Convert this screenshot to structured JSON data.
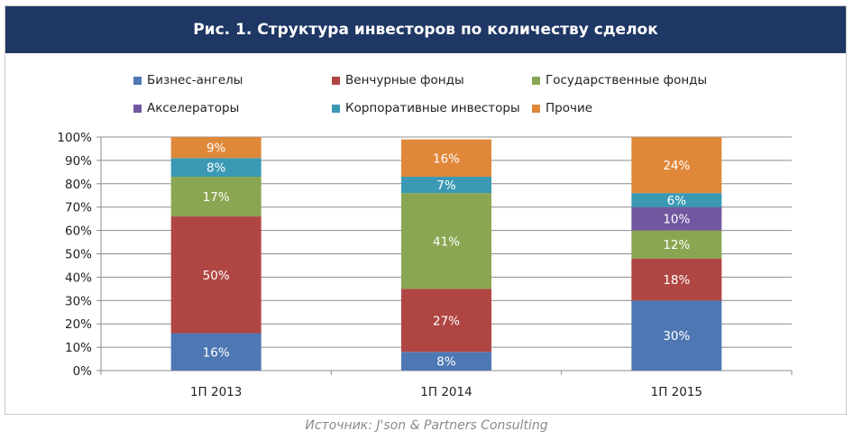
{
  "figure": {
    "title": "Рис. 1. Структура инвесторов по количеству сделок",
    "source": "Источник: J'son & Partners Consulting"
  },
  "legend": [
    {
      "name": "Бизнес-ангелы",
      "color": "#4e78b3"
    },
    {
      "name": "Венчурные фонды",
      "color": "#b04643"
    },
    {
      "name": "Государственные фонды",
      "color": "#8aa652"
    },
    {
      "name": "Акселераторы",
      "color": "#7257a0"
    },
    {
      "name": "Корпоративные инвесторы",
      "color": "#3b99b4"
    },
    {
      "name": "Прочие",
      "color": "#e0883a"
    }
  ],
  "chart_data": {
    "type": "bar",
    "stacked": true,
    "title": "Рис. 1. Структура инвесторов по количеству сделок",
    "categories": [
      "1П 2013",
      "1П 2014",
      "1П 2015"
    ],
    "series": [
      {
        "name": "Бизнес-ангелы",
        "color": "#4e78b3",
        "values": [
          16,
          8,
          30
        ]
      },
      {
        "name": "Венчурные фонды",
        "color": "#b04643",
        "values": [
          50,
          27,
          18
        ]
      },
      {
        "name": "Государственные фонды",
        "color": "#8aa652",
        "values": [
          17,
          41,
          12
        ]
      },
      {
        "name": "Акселераторы",
        "color": "#7257a0",
        "values": [
          0,
          0,
          10
        ]
      },
      {
        "name": "Корпоративные инвесторы",
        "color": "#3b99b4",
        "values": [
          8,
          7,
          6
        ]
      },
      {
        "name": "Прочие",
        "color": "#e0883a",
        "values": [
          9,
          16,
          24
        ]
      }
    ],
    "y_ticks": [
      "0%",
      "10%",
      "20%",
      "30%",
      "40%",
      "50%",
      "60%",
      "70%",
      "80%",
      "90%",
      "100%"
    ],
    "ylim": [
      0,
      100
    ],
    "grid": true,
    "xlabel": "",
    "ylabel": "",
    "legend_position": "top"
  }
}
